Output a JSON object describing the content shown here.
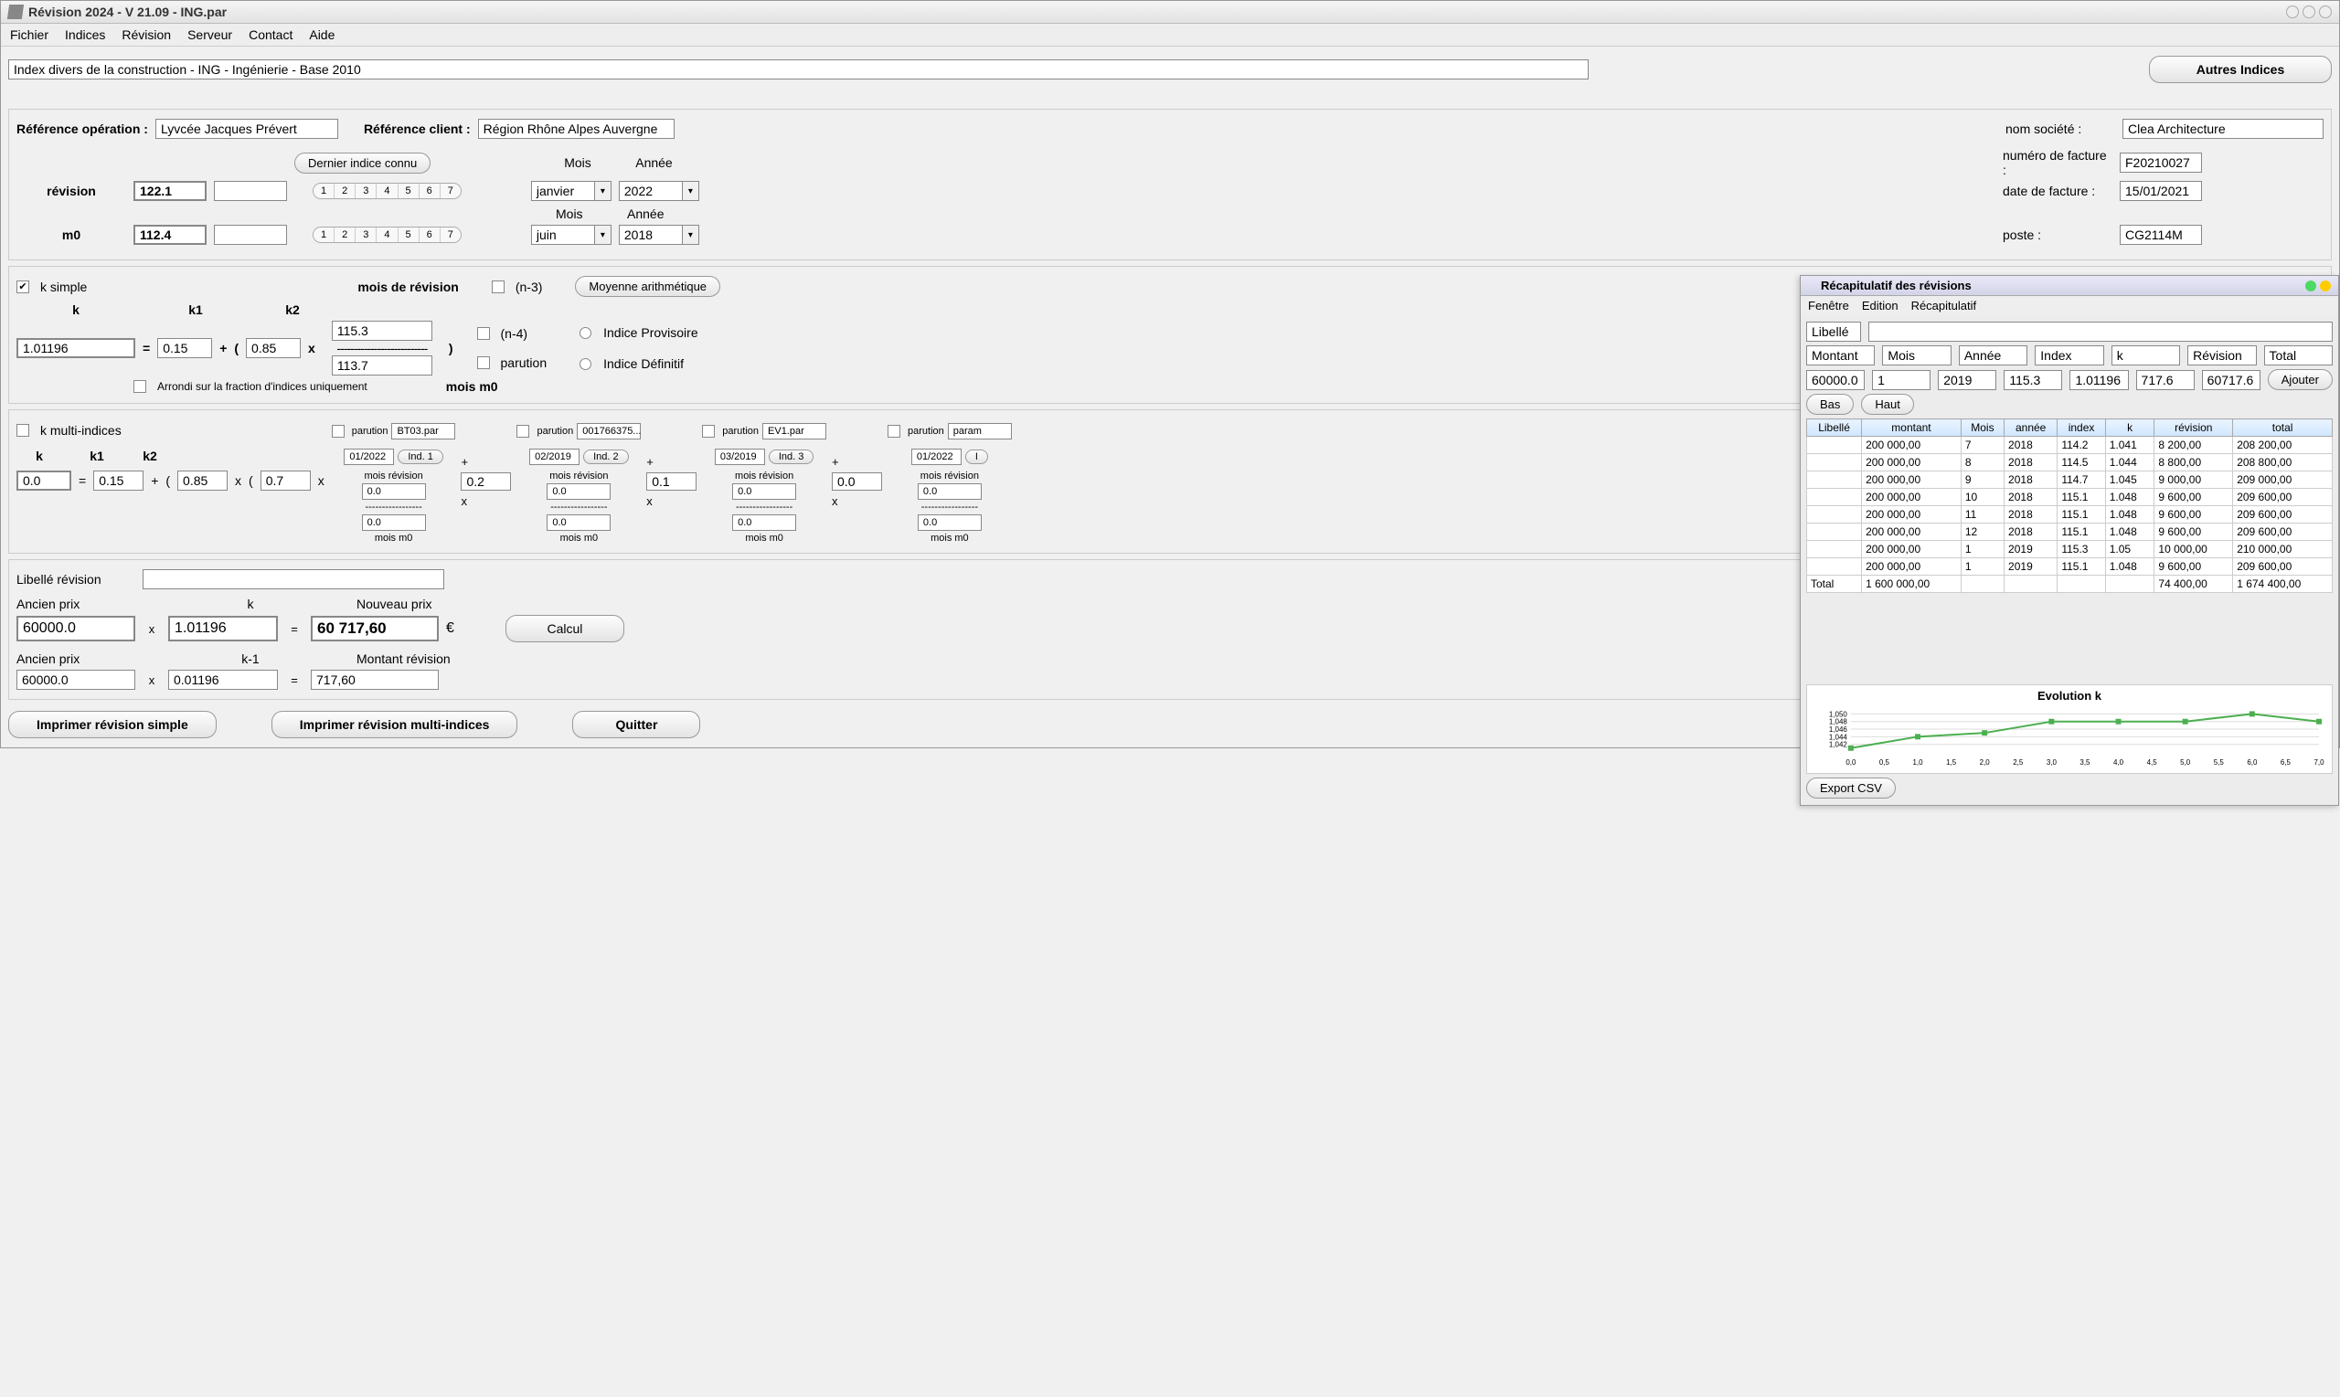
{
  "titlebar": {
    "title": "Révision 2024 - V 21.09 - ING.par"
  },
  "menubar": [
    "Fichier",
    "Indices",
    "Révision",
    "Serveur",
    "Contact",
    "Aide"
  ],
  "header": {
    "index_label": "Index divers de la construction - ING - Ingénierie - Base 2010",
    "autres_indices_btn": "Autres Indices"
  },
  "refs": {
    "ref_op_label": "Référence opération :",
    "ref_op_value": "Lyvcée Jacques Prévert",
    "ref_client_label": "Référence client :",
    "ref_client_value": "Région Rhône Alpes Auvergne"
  },
  "company": {
    "nom_societe_label": "nom société :",
    "nom_societe_value": "Clea Architecture",
    "num_facture_label": "numéro de facture :",
    "num_facture_value": "F20210027",
    "date_facture_label": "date de facture :",
    "date_facture_value": "15/01/2021",
    "poste_label": "poste :",
    "poste_value": "CG2114M"
  },
  "revision_block": {
    "dernier_indice_btn": "Dernier indice connu",
    "pills": [
      "1",
      "2",
      "3",
      "4",
      "5",
      "6",
      "7"
    ],
    "mois_label": "Mois",
    "annee_label": "Année",
    "rev_label": "révision",
    "rev_value": "122.1",
    "rev_mois": "janvier",
    "rev_annee": "2022",
    "m0_label": "m0",
    "m0_value": "112.4",
    "m0_mois": "juin",
    "m0_annee": "2018"
  },
  "ksimple": {
    "checkbox_label": "k simple",
    "k_label": "k",
    "k1_label": "k1",
    "k2_label": "k2",
    "mois_rev_label": "mois de révision",
    "mois_m0_label": "mois m0",
    "n3_label": "(n-3)",
    "n4_label": "(n-4)",
    "parution_label": "parution",
    "moyenne_btn": "Moyenne arithmétique",
    "indice_prov": "Indice Provisoire",
    "indice_def": "Indice Définitif",
    "k_value": "1.01196",
    "k1_value": "0.15",
    "k2_value": "0.85",
    "num_value": "115.3",
    "den_value": "113.7",
    "arrondi_label": "Arrondi sur la fraction d'indices uniquement"
  },
  "kmulti": {
    "checkbox_label": "k multi-indices",
    "k_label": "k",
    "k1_label": "k1",
    "k2_label": "k2",
    "result": "0.0",
    "k1": "0.15",
    "k2": "0.85",
    "coef": "0.7",
    "groups": [
      {
        "parution": "parution",
        "file": "BT03.par",
        "date": "01/2022",
        "ind": "Ind. 1",
        "num": "0.0",
        "den": "0.0",
        "coef_next": "0.2"
      },
      {
        "parution": "parution",
        "file": "001766375...",
        "date": "02/2019",
        "ind": "Ind. 2",
        "num": "0.0",
        "den": "0.0",
        "coef_next": "0.1"
      },
      {
        "parution": "parution",
        "file": "EV1.par",
        "date": "03/2019",
        "ind": "Ind. 3",
        "num": "0.0",
        "den": "0.0",
        "coef_next": "0.0"
      },
      {
        "parution": "parution",
        "file": "param",
        "date": "01/2022",
        "ind": "I",
        "num": "0.0",
        "den": "0.0",
        "coef_next": ""
      }
    ],
    "mois_rev": "mois révision",
    "mois_m0": "mois m0"
  },
  "calc": {
    "libelle_rev_label": "Libellé révision",
    "ancien_prix_label": "Ancien prix",
    "k_label": "k",
    "nouveau_prix_label": "Nouveau prix",
    "ancien_prix": "60000.0",
    "k": "1.01196",
    "nouveau_prix": "60 717,60",
    "currency": "€",
    "calcul_btn": "Calcul",
    "ancien_prix2_label": "Ancien prix",
    "km1_label": "k-1",
    "montant_rev_label": "Montant révision",
    "ancien_prix2": "60000.0",
    "km1": "0.01196",
    "montant_rev": "717,60"
  },
  "bottom_buttons": {
    "print_simple": "Imprimer révision simple",
    "print_multi": "Imprimer révision multi-indices",
    "quit": "Quitter"
  },
  "recap_window": {
    "title": "Récapitulatif des révisions",
    "menu": [
      "Fenêtre",
      "Edition",
      "Récapitulatif"
    ],
    "libelle_label": "Libellé",
    "headers": [
      "Montant",
      "Mois",
      "Année",
      "Index",
      "k",
      "Révision",
      "Total"
    ],
    "inputs": [
      "60000.0",
      "1",
      "2019",
      "115.3",
      "1.01196",
      "717.6",
      "60717.6"
    ],
    "ajouter_btn": "Ajouter",
    "bas_btn": "Bas",
    "haut_btn": "Haut",
    "table_headers": [
      "Libellé",
      "montant",
      "Mois",
      "année",
      "index",
      "k",
      "révision",
      "total"
    ],
    "rows": [
      [
        "",
        "200 000,00",
        "7",
        "2018",
        "114.2",
        "1.041",
        "8 200,00",
        "208 200,00"
      ],
      [
        "",
        "200 000,00",
        "8",
        "2018",
        "114.5",
        "1.044",
        "8 800,00",
        "208 800,00"
      ],
      [
        "",
        "200 000,00",
        "9",
        "2018",
        "114.7",
        "1.045",
        "9 000,00",
        "209 000,00"
      ],
      [
        "",
        "200 000,00",
        "10",
        "2018",
        "115.1",
        "1.048",
        "9 600,00",
        "209 600,00"
      ],
      [
        "",
        "200 000,00",
        "11",
        "2018",
        "115.1",
        "1.048",
        "9 600,00",
        "209 600,00"
      ],
      [
        "",
        "200 000,00",
        "12",
        "2018",
        "115.1",
        "1.048",
        "9 600,00",
        "209 600,00"
      ],
      [
        "",
        "200 000,00",
        "1",
        "2019",
        "115.3",
        "1.05",
        "10 000,00",
        "210 000,00"
      ],
      [
        "",
        "200 000,00",
        "1",
        "2019",
        "115.1",
        "1.048",
        "9 600,00",
        "209 600,00"
      ],
      [
        "Total",
        "1 600 000,00",
        "",
        "",
        "",
        "",
        "74 400,00",
        "1 674 400,00"
      ]
    ],
    "chart": {
      "title": "Evolution k",
      "x_labels": [
        "0,0",
        "0,5",
        "1,0",
        "1,5",
        "2,0",
        "2,5",
        "3,0",
        "3,5",
        "4,0",
        "4,5",
        "5,0",
        "5,5",
        "6,0",
        "6,5",
        "7,0"
      ],
      "y_labels": [
        "1,050",
        "1,048",
        "1,046",
        "1,044",
        "1,042"
      ],
      "points": [
        [
          0,
          1.041
        ],
        [
          1,
          1.044
        ],
        [
          2,
          1.045
        ],
        [
          3,
          1.048
        ],
        [
          4,
          1.048
        ],
        [
          5,
          1.048
        ],
        [
          6,
          1.05
        ],
        [
          7,
          1.048
        ]
      ],
      "line_color": "#4caf50",
      "grid_color": "#dddddd",
      "bg": "#ffffff"
    },
    "export_btn": "Export CSV"
  }
}
